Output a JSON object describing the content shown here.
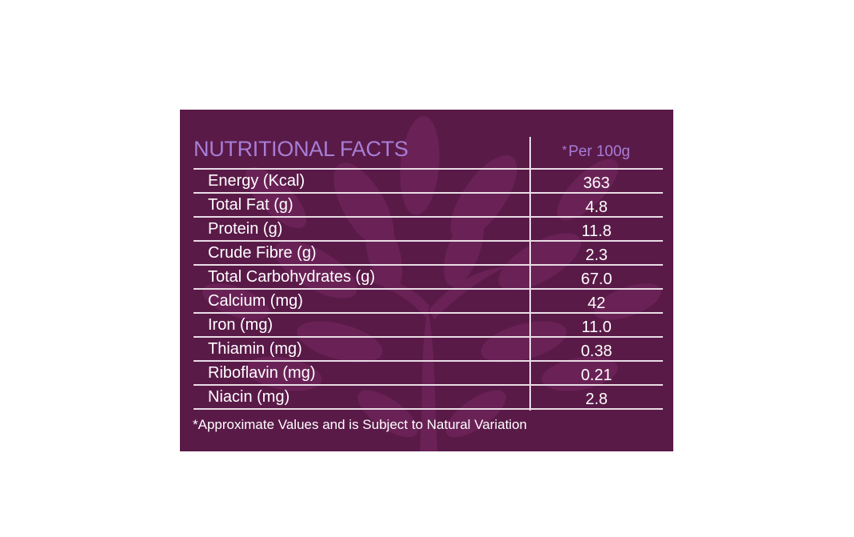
{
  "title": "NUTRITIONAL FACTS",
  "column_header": {
    "star": "*",
    "label": "Per 100g"
  },
  "rows": [
    {
      "label": "Energy (Kcal)",
      "value": "363"
    },
    {
      "label": "Total Fat (g)",
      "value": "4.8"
    },
    {
      "label": "Protein (g)",
      "value": "11.8"
    },
    {
      "label": "Crude Fibre (g)",
      "value": "2.3"
    },
    {
      "label": "Total Carbohydrates (g)",
      "value": "67.0"
    },
    {
      "label": "Calcium (mg)",
      "value": "42"
    },
    {
      "label": "Iron (mg)",
      "value": "11.0"
    },
    {
      "label": "Thiamin (mg)",
      "value": "0.38"
    },
    {
      "label": "Riboflavin (mg)",
      "value": "0.21"
    },
    {
      "label": "Niacin (mg)",
      "value": "2.8"
    }
  ],
  "footnote": "*Approximate Values and is Subject to Natural Variation",
  "colors": {
    "panel_background": "#5a1a48",
    "leaf_pattern": "#6e2459",
    "heading_text": "#a77ed6",
    "body_text": "#ffffff",
    "rule_lines": "#e9dde6"
  },
  "decoration": {
    "background_art": "tree-leaves-pattern"
  }
}
